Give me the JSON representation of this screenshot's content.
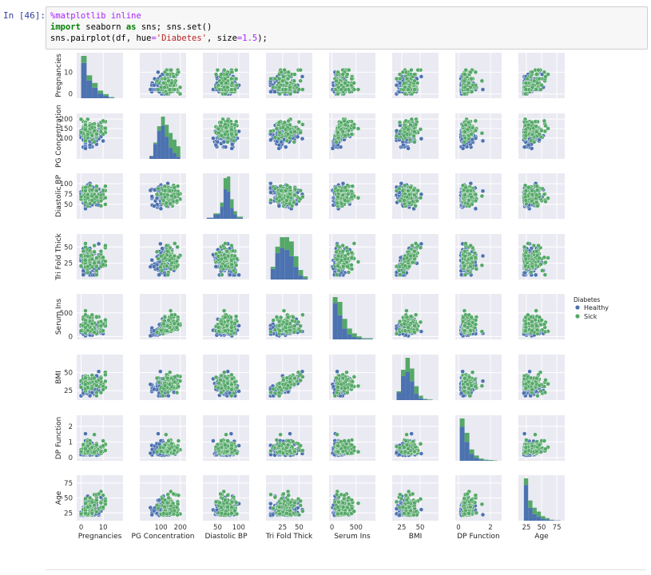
{
  "cell": {
    "prompt": "In [46]:",
    "code": {
      "line1_magic": "%matplotlib inline",
      "line2_import": "import",
      "line2_rest": " seaborn ",
      "line2_as": "as",
      "line2_tail": " sns; sns.set()",
      "line3_pre": "sns.pairplot(df, hue",
      "line3_eq1": "=",
      "line3_str": "'Diabetes'",
      "line3_mid": ", size",
      "line3_eq2": "=",
      "line3_num": "1.5",
      "line3_post": ");"
    }
  },
  "colors": {
    "healthy": "#4c72b0",
    "sick": "#55a868",
    "panel_bg": "#eaeaf2",
    "grid": "#ffffff"
  },
  "chart_data": {
    "type": "scatter",
    "variables": [
      "Pregnancies",
      "PG Concentration",
      "Diastolic BP",
      "Tri Fold Thick",
      "Serum Ins",
      "BMI",
      "DP Function",
      "Age"
    ],
    "axis_ranges": {
      "Pregnancies": [
        -2,
        19
      ],
      "PG Concentration": [
        -10,
        230
      ],
      "Diastolic BP": [
        15,
        125
      ],
      "Tri Fold Thick": [
        0,
        70
      ],
      "Serum Ins": [
        -60,
        900
      ],
      "BMI": [
        12,
        75
      ],
      "DP Function": [
        -0.2,
        2.7
      ],
      "Age": [
        12,
        88
      ]
    },
    "row_ticks": {
      "Pregnancies": [
        "0",
        "10"
      ],
      "PG Concentration": [
        "100",
        "150",
        "200"
      ],
      "Diastolic BP": [
        "50",
        "75",
        "100"
      ],
      "Tri Fold Thick": [
        "25",
        "50"
      ],
      "Serum Ins": [
        "0",
        "500"
      ],
      "BMI": [
        "25",
        "50"
      ],
      "DP Function": [
        "0",
        "1",
        "2"
      ],
      "Age": [
        "25",
        "50",
        "75"
      ]
    },
    "col_ticks": {
      "Pregnancies": [
        "0",
        "10"
      ],
      "PG Concentration": [
        "100",
        "200"
      ],
      "Diastolic BP": [
        "50",
        "100"
      ],
      "Tri Fold Thick": [
        "25",
        "50"
      ],
      "Serum Ins": [
        "0",
        "500"
      ],
      "BMI": [
        "25",
        "50"
      ],
      "DP Function": [
        "0",
        "2"
      ],
      "Age": [
        "25",
        "50",
        "75"
      ]
    },
    "series": [
      {
        "name": "Healthy"
      },
      {
        "name": "Sick"
      }
    ],
    "diagonal_histograms": {
      "Pregnancies": {
        "bins": [
          0,
          2.5,
          5,
          7.5,
          10,
          12.5,
          15,
          17.5
        ],
        "healthy": [
          60,
          30,
          18,
          8,
          4,
          1,
          0
        ],
        "sick": [
          12,
          9,
          8,
          5,
          3,
          1,
          0
        ]
      },
      "PG Concentration": {
        "bins": [
          40,
          60,
          80,
          100,
          120,
          140,
          160,
          180,
          200
        ],
        "healthy": [
          4,
          20,
          38,
          45,
          30,
          15,
          8,
          3
        ],
        "sick": [
          0,
          2,
          6,
          12,
          16,
          20,
          18,
          14
        ]
      },
      "Diastolic BP": {
        "bins": [
          24,
          40,
          56,
          64,
          72,
          80,
          88,
          96,
          110
        ],
        "healthy": [
          2,
          8,
          22,
          55,
          50,
          20,
          8,
          2
        ],
        "sick": [
          0,
          2,
          8,
          20,
          28,
          16,
          6,
          2
        ]
      },
      "Tri Fold Thick": {
        "bins": [
          7,
          14,
          21,
          28,
          35,
          42,
          49,
          56,
          63
        ],
        "healthy": [
          10,
          25,
          30,
          28,
          22,
          12,
          4,
          1
        ],
        "sick": [
          2,
          6,
          10,
          12,
          14,
          10,
          5,
          2
        ]
      },
      "Serum Ins": {
        "bins": [
          15,
          115,
          215,
          315,
          415,
          515,
          615,
          715,
          846
        ],
        "healthy": [
          60,
          40,
          18,
          8,
          4,
          2,
          1,
          1
        ],
        "sick": [
          10,
          22,
          16,
          10,
          6,
          3,
          1,
          1
        ]
      },
      "BMI": {
        "bins": [
          18,
          24,
          30,
          36,
          42,
          48,
          54,
          60,
          67
        ],
        "healthy": [
          12,
          38,
          45,
          30,
          10,
          3,
          1,
          0
        ],
        "sick": [
          2,
          10,
          22,
          20,
          12,
          4,
          1,
          1
        ]
      },
      "DP Function": {
        "bins": [
          0.08,
          0.38,
          0.68,
          0.98,
          1.28,
          1.58,
          1.88,
          2.18,
          2.42
        ],
        "healthy": [
          90,
          50,
          18,
          8,
          3,
          1,
          1,
          0
        ],
        "sick": [
          22,
          24,
          12,
          6,
          3,
          2,
          1,
          1
        ]
      },
      "Age": {
        "bins": [
          21,
          28,
          35,
          42,
          49,
          56,
          63,
          70,
          81
        ],
        "healthy": [
          110,
          40,
          20,
          12,
          6,
          4,
          2,
          1
        ],
        "sick": [
          20,
          22,
          20,
          16,
          8,
          4,
          1,
          0
        ]
      }
    },
    "legend": {
      "title": "Diabetes",
      "position": "right"
    }
  }
}
